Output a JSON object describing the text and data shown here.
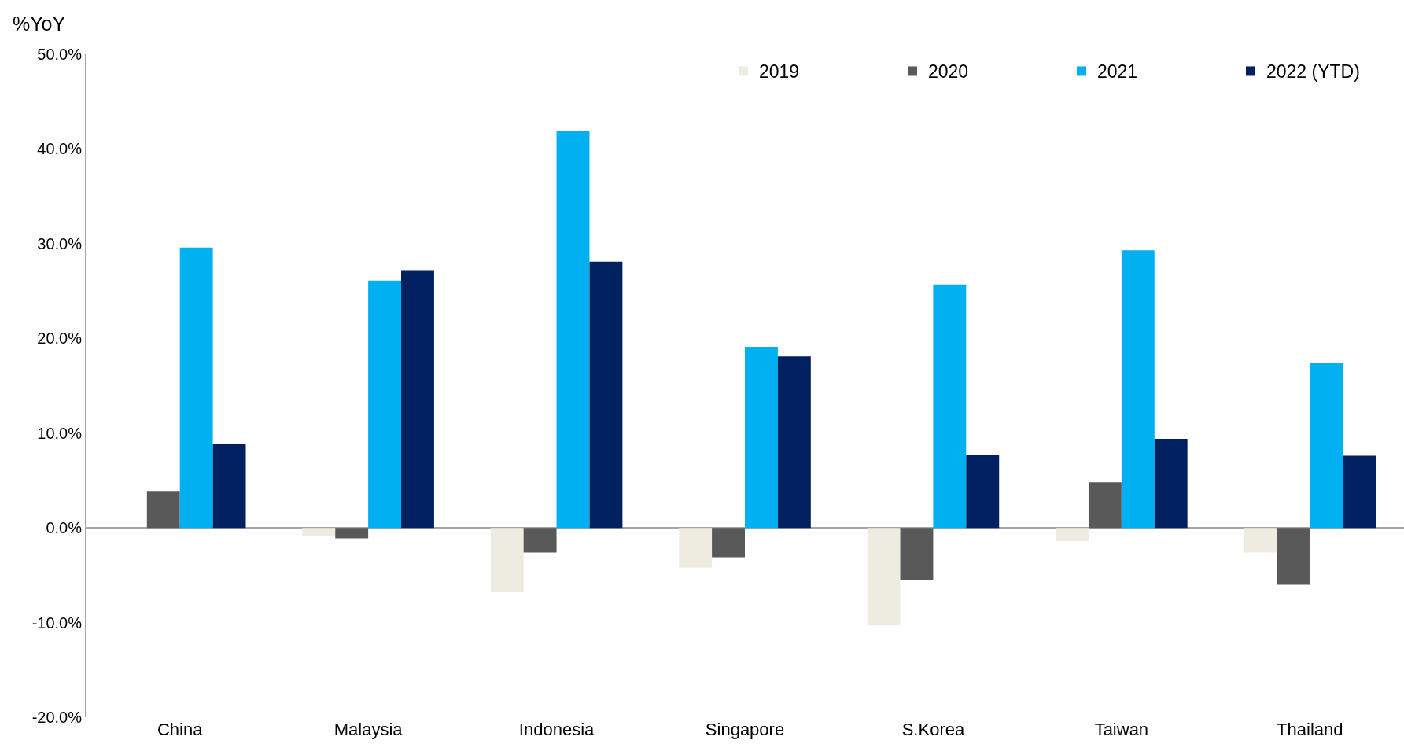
{
  "chart_data": {
    "type": "bar",
    "ylabel": "%YoY",
    "categories": [
      "China",
      "Malaysia",
      "Indonesia",
      "Singapore",
      "S.Korea",
      "Taiwan",
      "Thailand"
    ],
    "series": [
      {
        "name": "2019",
        "color": "#eeece1",
        "values": [
          0,
          -0.9,
          -6.8,
          -4.2,
          -10.3,
          -1.4,
          -2.6
        ]
      },
      {
        "name": "2020",
        "color": "#595959",
        "values": [
          3.9,
          -1.1,
          -2.6,
          -3.1,
          -5.5,
          4.8,
          -6.0
        ]
      },
      {
        "name": "2021",
        "color": "#00b0f0",
        "values": [
          29.6,
          26.1,
          41.9,
          19.1,
          25.7,
          29.3,
          17.4
        ]
      },
      {
        "name": "2022 (YTD)",
        "color": "#002060",
        "values": [
          8.9,
          27.2,
          28.1,
          18.1,
          7.7,
          9.4,
          7.6
        ]
      }
    ],
    "ylim": [
      -20,
      50
    ],
    "yticks": [
      {
        "value": -20,
        "label": "-20.0%"
      },
      {
        "value": -10,
        "label": "-10.0%"
      },
      {
        "value": 0,
        "label": "0.0%"
      },
      {
        "value": 10,
        "label": "10.0%"
      },
      {
        "value": 20,
        "label": "20.0%"
      },
      {
        "value": 30,
        "label": "30.0%"
      },
      {
        "value": 40,
        "label": "40.0%"
      },
      {
        "value": 50,
        "label": "50.0%"
      }
    ],
    "legend": "top right"
  }
}
